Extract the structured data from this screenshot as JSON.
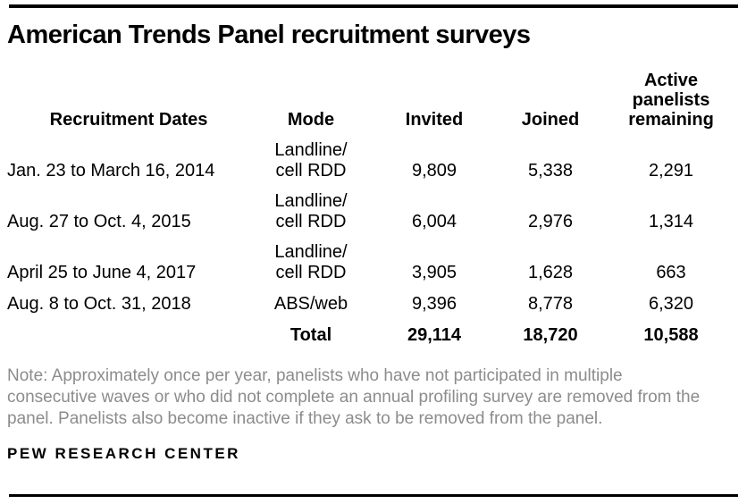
{
  "title": "American Trends Panel recruitment surveys",
  "colors": {
    "background": "#ffffff",
    "text": "#000000",
    "note_text": "#8c8c8c",
    "rule": "#000000"
  },
  "table": {
    "headers": {
      "dates": "Recruitment Dates",
      "mode": "Mode",
      "invited": "Invited",
      "joined": "Joined",
      "active": "Active panelists remaining"
    },
    "rows": [
      {
        "dates": "Jan. 23 to March 16, 2014",
        "mode": "Landline/ cell RDD",
        "invited": "9,809",
        "joined": "5,338",
        "active": "2,291"
      },
      {
        "dates": "Aug. 27 to Oct. 4, 2015",
        "mode": "Landline/ cell RDD",
        "invited": "6,004",
        "joined": "2,976",
        "active": "1,314"
      },
      {
        "dates": "April 25 to June 4, 2017",
        "mode": "Landline/ cell RDD",
        "invited": "3,905",
        "joined": "1,628",
        "active": "663"
      },
      {
        "dates": "Aug. 8 to Oct. 31, 2018",
        "mode": "ABS/web",
        "invited": "9,396",
        "joined": "8,778",
        "active": "6,320"
      }
    ],
    "total": {
      "label": "Total",
      "invited": "29,114",
      "joined": "18,720",
      "active": "10,588"
    }
  },
  "note": {
    "lines": [
      "Note: Approximately once per year, panelists who have not participated in multiple",
      "consecutive waves or who did not complete an annual profiling survey are removed from the",
      "panel. Panelists also become inactive if they ask to be removed from the panel."
    ]
  },
  "source": "PEW RESEARCH CENTER",
  "chart_data": {
    "type": "table",
    "title": "American Trends Panel recruitment surveys",
    "columns": [
      "Recruitment Dates",
      "Mode",
      "Invited",
      "Joined",
      "Active panelists remaining"
    ],
    "rows": [
      [
        "Jan. 23 to March 16, 2014",
        "Landline/cell RDD",
        9809,
        5338,
        2291
      ],
      [
        "Aug. 27 to Oct. 4, 2015",
        "Landline/cell RDD",
        6004,
        2976,
        1314
      ],
      [
        "April 25 to June 4, 2017",
        "Landline/cell RDD",
        3905,
        1628,
        663
      ],
      [
        "Aug. 8 to Oct. 31, 2018",
        "ABS/web",
        9396,
        8778,
        6320
      ]
    ],
    "total_row": [
      "",
      "Total",
      29114,
      18720,
      10588
    ],
    "note": "Note: Approximately once per year, panelists who have not participated in multiple consecutive waves or who did not complete an annual profiling survey are removed from the panel. Panelists also become inactive if they ask to be removed from the panel.",
    "source": "PEW RESEARCH CENTER"
  }
}
